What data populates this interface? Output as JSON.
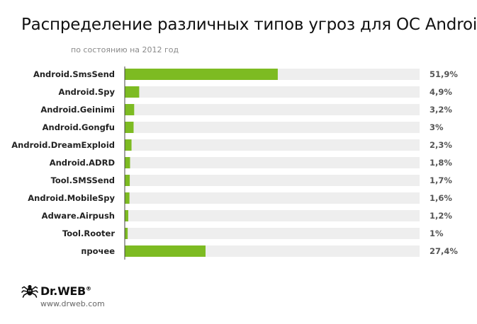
{
  "chart_data": {
    "type": "bar",
    "orientation": "horizontal",
    "title": "Распределение различных типов угроз для ОС Android",
    "subtitle": "по состоянию на 2012 год",
    "categories": [
      "Android.SmsSend",
      "Android.Spy",
      "Android.Geinimi",
      "Android.Gongfu",
      "Android.DreamExploid",
      "Android.ADRD",
      "Tool.SMSSend",
      "Android.MobileSpy",
      "Adware.Airpush",
      "Tool.Rooter",
      "прочее"
    ],
    "values": [
      51.9,
      4.9,
      3.2,
      3.0,
      2.3,
      1.8,
      1.7,
      1.6,
      1.2,
      1.0,
      27.4
    ],
    "value_labels": [
      "51,9%",
      "4,9%",
      "3,2%",
      "3%",
      "2,3%",
      "1,8%",
      "1,7%",
      "1,6%",
      "1,2%",
      "1%",
      "27,4%"
    ],
    "unit": "%",
    "xlim": [
      0,
      100
    ],
    "grid": false,
    "legend": "none",
    "colors": {
      "bar": "#7dbb22",
      "track": "#eeeeee",
      "axis": "#444444",
      "label": "#222222",
      "value_label": "#555555"
    }
  },
  "footer": {
    "brand": "Dr.WEB",
    "registered": "®",
    "url": "www.drweb.com",
    "icon": "spider-logo-icon"
  }
}
